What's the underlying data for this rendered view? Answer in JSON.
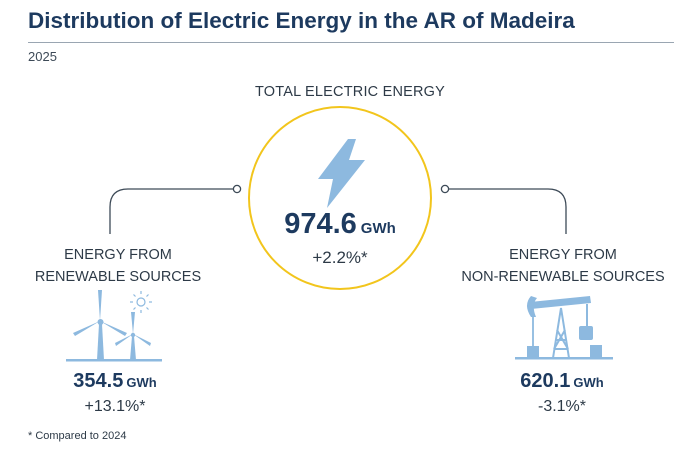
{
  "header": {
    "title": "Distribution of Electric Energy in the AR of Madeira",
    "year": "2025"
  },
  "total": {
    "label": "TOTAL ELECTRIC ENERGY",
    "value": "974.6",
    "unit": "GWh",
    "change": "+2.2%*",
    "icon": "lightning-bolt-icon"
  },
  "renewable": {
    "label_line1": "ENERGY FROM",
    "label_line2": "RENEWABLE SOURCES",
    "value": "354.5",
    "unit": "GWh",
    "change": "+13.1%*",
    "icon": "wind-turbines-sun-icon"
  },
  "non_renewable": {
    "label_line1": "ENERGY FROM",
    "label_line2": "NON-RENEWABLE SOURCES",
    "value": "620.1",
    "unit": "GWh",
    "change": "-3.1%*",
    "icon": "oil-pump-jack-icon"
  },
  "footnote": "* Compared to 2024",
  "colors": {
    "title": "#1d3a5f",
    "accent_yellow": "#f2c51c",
    "icon_blue": "#8db9df",
    "connector": "#3d4a57"
  }
}
